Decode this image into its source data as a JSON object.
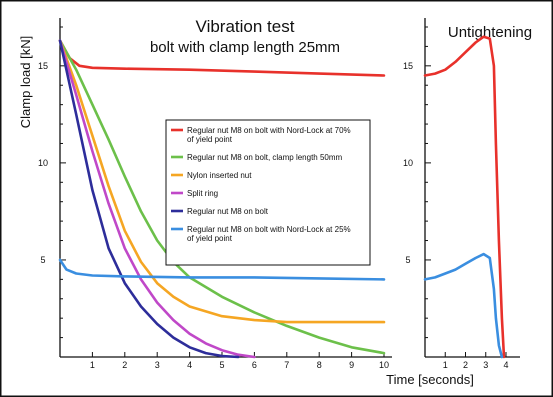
{
  "chart_data": [
    {
      "type": "line",
      "title": "Vibration test",
      "subtitle": "bolt with clamp length 25mm",
      "ylabel": "Clamp load [kN]",
      "xlabel": "Time [seconds]",
      "xlim": [
        0,
        10
      ],
      "ylim": [
        0,
        17
      ],
      "x_ticks": [
        1,
        2,
        3,
        4,
        5,
        6,
        7,
        8,
        9,
        10
      ],
      "y_ticks": [
        5,
        10,
        15
      ],
      "grid": false,
      "legend_position": "center-right",
      "series": [
        {
          "name": "Regular nut M8 on bolt with Nord-Lock at 70% of yield point",
          "color": "#e8312b",
          "x": [
            0,
            0.3,
            0.6,
            1,
            2,
            4,
            6,
            8,
            10
          ],
          "y": [
            16.3,
            15.4,
            15.0,
            14.9,
            14.85,
            14.8,
            14.7,
            14.6,
            14.5
          ]
        },
        {
          "name": "Regular nut M8 on bolt, clamp length 50mm",
          "color": "#6cc04a",
          "x": [
            0,
            0.5,
            1,
            1.5,
            2,
            2.5,
            3,
            3.5,
            4,
            5,
            6,
            7,
            8,
            9,
            10
          ],
          "y": [
            16.3,
            14.8,
            13.0,
            11.2,
            9.3,
            7.5,
            6.0,
            4.9,
            4.1,
            3.1,
            2.3,
            1.6,
            1.0,
            0.5,
            0.2
          ]
        },
        {
          "name": "Nylon inserted nut",
          "color": "#f5a623",
          "x": [
            0,
            0.5,
            1,
            1.5,
            2,
            2.5,
            3,
            3.5,
            4,
            5,
            6,
            7,
            8,
            9,
            10
          ],
          "y": [
            16.3,
            14.0,
            11.4,
            8.8,
            6.5,
            4.9,
            3.8,
            3.1,
            2.6,
            2.1,
            1.9,
            1.8,
            1.8,
            1.8,
            1.8
          ]
        },
        {
          "name": "Split ring",
          "color": "#c048c8",
          "x": [
            0,
            0.5,
            1,
            1.5,
            2,
            2.5,
            3,
            3.5,
            4,
            4.5,
            5,
            5.5,
            6
          ],
          "y": [
            16.3,
            13.5,
            10.6,
            7.9,
            5.6,
            4.0,
            2.8,
            1.9,
            1.2,
            0.7,
            0.35,
            0.12,
            0
          ]
        },
        {
          "name": "Regular nut M8 on bolt",
          "color": "#2d2d9a",
          "x": [
            0,
            0.5,
            1,
            1.5,
            2,
            2.5,
            3,
            3.5,
            4,
            4.5,
            5,
            5.5
          ],
          "y": [
            16.3,
            12.5,
            8.6,
            5.6,
            3.8,
            2.6,
            1.7,
            1.0,
            0.5,
            0.2,
            0.05,
            0
          ]
        },
        {
          "name": "Regular nut M8 on bolt with Nord-Lock at 25% of yield point",
          "color": "#3a8ee0",
          "x": [
            0,
            0.2,
            0.5,
            1,
            2,
            4,
            6,
            8,
            10
          ],
          "y": [
            5.0,
            4.5,
            4.3,
            4.2,
            4.15,
            4.1,
            4.1,
            4.05,
            4.0
          ]
        }
      ]
    },
    {
      "type": "line",
      "title": "Untightening",
      "xlim": [
        0,
        4
      ],
      "ylim": [
        0,
        17
      ],
      "x_ticks": [
        1,
        2,
        3,
        4
      ],
      "y_ticks": [
        5,
        10,
        15
      ],
      "grid": false,
      "series": [
        {
          "color": "#e8312b",
          "x": [
            0,
            0.5,
            1,
            1.5,
            2,
            2.5,
            2.9,
            3.2,
            3.4,
            3.5,
            3.65,
            3.8,
            3.9
          ],
          "y": [
            14.5,
            14.6,
            14.8,
            15.2,
            15.7,
            16.2,
            16.5,
            16.4,
            15.0,
            11.0,
            6.0,
            2.0,
            0
          ]
        },
        {
          "color": "#3a8ee0",
          "x": [
            0,
            0.5,
            1,
            1.5,
            2,
            2.5,
            2.9,
            3.2,
            3.4,
            3.5,
            3.65,
            3.8
          ],
          "y": [
            4.0,
            4.1,
            4.3,
            4.5,
            4.8,
            5.1,
            5.3,
            5.1,
            3.5,
            2.0,
            0.6,
            0
          ]
        }
      ]
    }
  ]
}
